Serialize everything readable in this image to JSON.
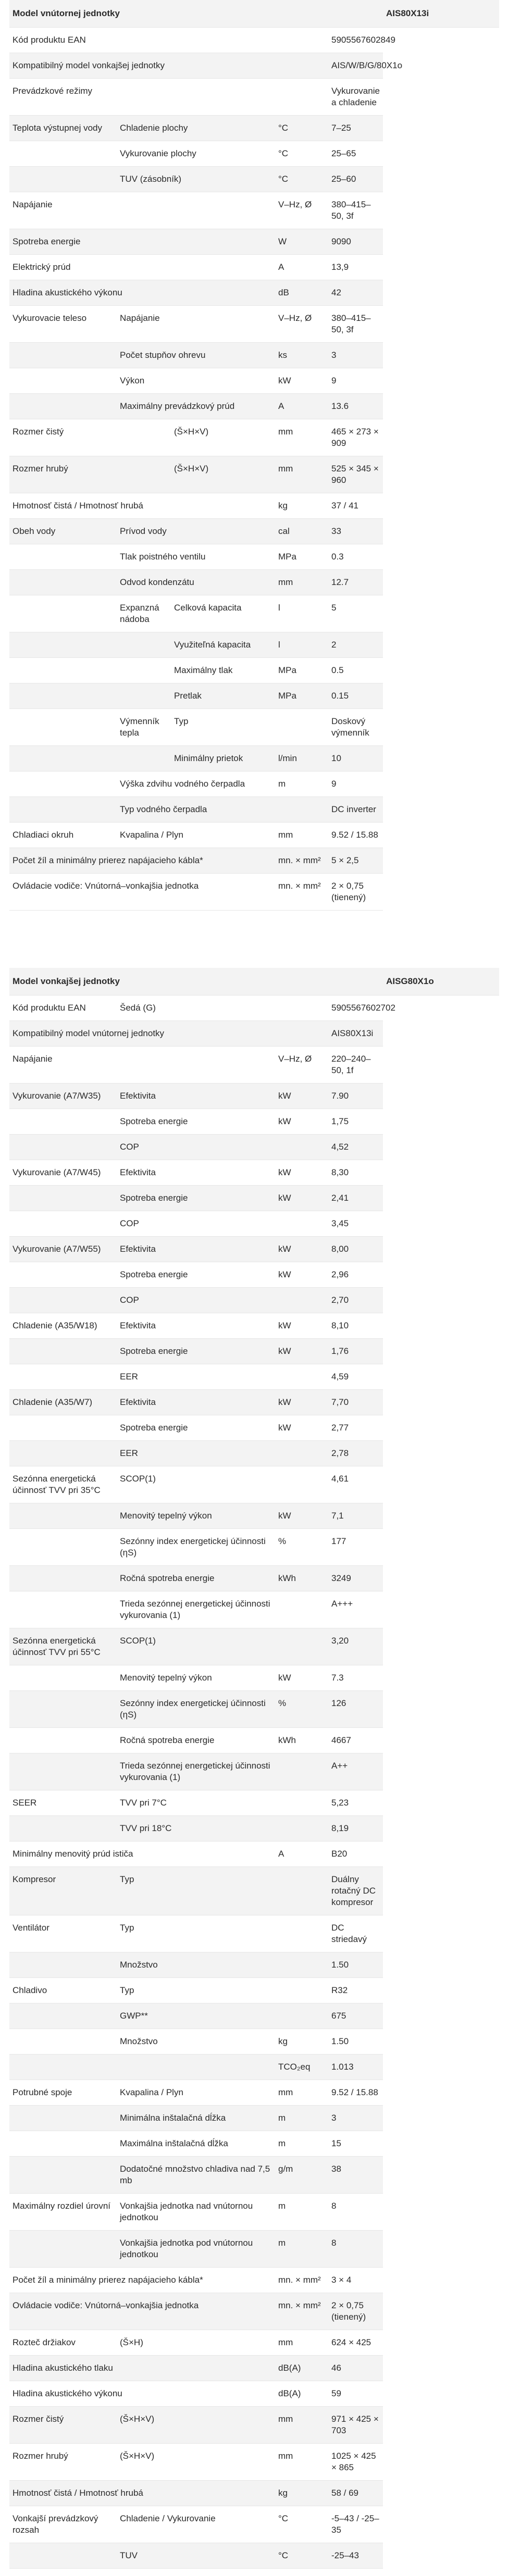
{
  "indoor": {
    "title": "Model vnútornej jednotky",
    "model": "AIS80X13i",
    "rows": [
      {
        "a": "Kód produktu EAN",
        "unit": "",
        "val": "5905567602849"
      },
      {
        "a": "Kompatibilný model vonkajšej jednotky",
        "unit": "",
        "val": "AIS/W/B/G/80X1o"
      },
      {
        "a": "Prevádzkové režimy",
        "unit": "",
        "val": "Vykurovanie a chladenie"
      },
      {
        "a": "Teplota výstupnej vody",
        "b": "Chladenie plochy",
        "unit": "°C",
        "val": "7–25"
      },
      {
        "a": "",
        "b": "Vykurovanie plochy",
        "unit": "°C",
        "val": "25–65"
      },
      {
        "a": "",
        "b": "TUV (zásobník)",
        "unit": "°C",
        "val": "25–60"
      },
      {
        "a": "Napájanie",
        "unit": "V–Hz, Ø",
        "val": "380–415–50, 3f"
      },
      {
        "a": "Spotreba energie",
        "unit": "W",
        "val": "9090"
      },
      {
        "a": "Elektrický prúd",
        "unit": "A",
        "val": "13,9"
      },
      {
        "a": "Hladina akustického výkonu",
        "unit": "dB",
        "val": "42"
      },
      {
        "a": "Vykurovacie teleso",
        "b": "Napájanie",
        "unit": "V–Hz, Ø",
        "val": "380–415–50, 3f"
      },
      {
        "a": "",
        "b": "Počet stupňov ohrevu",
        "unit": "ks",
        "val": "3"
      },
      {
        "a": "",
        "b": "Výkon",
        "unit": "kW",
        "val": "9"
      },
      {
        "a": "",
        "b": "Maximálny prevádzkový prúd",
        "unit": "A",
        "val": "13.6"
      },
      {
        "a": "Rozmer čistý",
        "c": "(Š×H×V)",
        "unit": "mm",
        "val": "465 × 273 × 909"
      },
      {
        "a": "Rozmer hrubý",
        "c": "(Š×H×V)",
        "unit": "mm",
        "val": "525 × 345 × 960"
      },
      {
        "a": "Hmotnosť čistá / Hmotnosť hrubá",
        "unit": "kg",
        "val": "37 / 41"
      },
      {
        "a": "Obeh vody",
        "b": "Prívod vody",
        "unit": "cal",
        "val": "33"
      },
      {
        "a": "",
        "b": "Tlak poistného ventilu",
        "unit": "MPa",
        "val": "0.3"
      },
      {
        "a": "",
        "b": "Odvod kondenzátu",
        "unit": "mm",
        "val": "12.7"
      },
      {
        "a": "",
        "b": "Expanzná nádoba",
        "c": "Celková kapacita",
        "unit": "l",
        "val": "5"
      },
      {
        "a": "",
        "b": "",
        "c": "Využiteľná kapacita",
        "unit": "l",
        "val": "2"
      },
      {
        "a": "",
        "b": "",
        "c": "Maximálny tlak",
        "unit": "MPa",
        "val": "0.5"
      },
      {
        "a": "",
        "b": "",
        "c": "Pretlak",
        "unit": "MPa",
        "val": "0.15"
      },
      {
        "a": "",
        "b": "Výmenník tepla",
        "c": "Typ",
        "unit": "",
        "val": "Doskový výmenník"
      },
      {
        "a": "",
        "b": "",
        "c": "Minimálny prietok",
        "unit": "l/min",
        "val": "10"
      },
      {
        "a": "",
        "b": "Výška zdvihu vodného čerpadla",
        "unit": "m",
        "val": "9"
      },
      {
        "a": "",
        "b": "Typ vodného čerpadla",
        "unit": "",
        "val": "DC inverter"
      },
      {
        "a": "Chladiaci okruh",
        "b": "Kvapalina / Plyn",
        "unit": "mm",
        "val": "9.52 / 15.88"
      },
      {
        "a": "Počet žíl a minimálny prierez napájacieho kábla*",
        "unit": "mn. × mm²",
        "val": "5 × 2,5"
      },
      {
        "a": "Ovládacie vodiče: Vnútorná–vonkajšia jednotka",
        "unit": "mn. × mm²",
        "val": "2 × 0,75 (tienený)"
      }
    ]
  },
  "outdoor": {
    "title": "Model vonkajšej jednotky",
    "model": "AISG80X1o",
    "rows": [
      {
        "a": "Kód produktu EAN",
        "b": "Šedá (G)",
        "unit": "",
        "val": "5905567602702"
      },
      {
        "a": "Kompatibilný model vnútornej jednotky",
        "unit": "",
        "val": "AIS80X13i"
      },
      {
        "a": "Napájanie",
        "unit": "V–Hz, Ø",
        "val": "220–240–50, 1f"
      },
      {
        "a": "Vykurovanie (A7/W35)",
        "b": "Efektivita",
        "unit": "kW",
        "val": "7.90"
      },
      {
        "a": "",
        "b": "Spotreba energie",
        "unit": "kW",
        "val": "1,75"
      },
      {
        "a": "",
        "b": "COP",
        "unit": "",
        "val": "4,52"
      },
      {
        "a": "Vykurovanie (A7/W45)",
        "b": "Efektivita",
        "unit": "kW",
        "val": "8,30"
      },
      {
        "a": "",
        "b": "Spotreba energie",
        "unit": "kW",
        "val": "2,41"
      },
      {
        "a": "",
        "b": "COP",
        "unit": "",
        "val": "3,45"
      },
      {
        "a": "Vykurovanie (A7/W55)",
        "b": "Efektivita",
        "unit": "kW",
        "val": "8,00"
      },
      {
        "a": "",
        "b": "Spotreba energie",
        "unit": "kW",
        "val": "2,96"
      },
      {
        "a": "",
        "b": "COP",
        "unit": "",
        "val": "2,70"
      },
      {
        "a": "Chladenie (A35/W18)",
        "b": "Efektivita",
        "unit": "kW",
        "val": "8,10"
      },
      {
        "a": "",
        "b": "Spotreba energie",
        "unit": "kW",
        "val": "1,76"
      },
      {
        "a": "",
        "b": "EER",
        "unit": "",
        "val": "4,59"
      },
      {
        "a": "Chladenie (A35/W7)",
        "b": "Efektivita",
        "unit": "kW",
        "val": "7,70"
      },
      {
        "a": "",
        "b": "Spotreba energie",
        "unit": "kW",
        "val": "2,77"
      },
      {
        "a": "",
        "b": "EER",
        "unit": "",
        "val": "2,78"
      },
      {
        "a": "Sezónna energetická účinnosť TVV pri 35°C",
        "b": "SCOP(1)",
        "unit": "",
        "val": "4,61"
      },
      {
        "a": "",
        "b": "Menovitý tepelný výkon",
        "unit": "kW",
        "val": "7,1"
      },
      {
        "a": "",
        "b": "Sezónny index energetickej účinnosti (ηS)",
        "unit": "%",
        "val": "177"
      },
      {
        "a": "",
        "b": "Ročná spotreba energie",
        "unit": "kWh",
        "val": "3249"
      },
      {
        "a": "",
        "b": "Trieda sezónnej energetickej účinnosti vykurovania (1)",
        "unit": "",
        "val": "A+++"
      },
      {
        "a": "Sezónna energetická účinnosť TVV pri 55°C",
        "b": "SCOP(1)",
        "unit": "",
        "val": "3,20"
      },
      {
        "a": "",
        "b": "Menovitý tepelný výkon",
        "unit": "kW",
        "val": "7.3"
      },
      {
        "a": "",
        "b": "Sezónny index energetickej účinnosti (ηS)",
        "unit": "%",
        "val": "126"
      },
      {
        "a": "",
        "b": "Ročná spotreba energie",
        "unit": "kWh",
        "val": "4667"
      },
      {
        "a": "",
        "b": "Trieda sezónnej energetickej účinnosti vykurovania (1)",
        "unit": "",
        "val": "A++"
      },
      {
        "a": "SEER",
        "b": "TVV pri 7°C",
        "unit": "",
        "val": "5,23"
      },
      {
        "a": "",
        "b": "TVV pri 18°C",
        "unit": "",
        "val": "8,19"
      },
      {
        "a": "Minimálny menovitý prúd ističa",
        "unit": "A",
        "val": "B20"
      },
      {
        "a": "Kompresor",
        "b": "Typ",
        "unit": "",
        "val": "Duálny rotačný DC kompresor"
      },
      {
        "a": "Ventilátor",
        "b": "Typ",
        "unit": "",
        "val": "DC striedavý"
      },
      {
        "a": "",
        "b": "Množstvo",
        "unit": "",
        "val": "1.50"
      },
      {
        "a": "Chladivo",
        "b": "Typ",
        "unit": "",
        "val": "R32"
      },
      {
        "a": "",
        "b": "GWP**",
        "unit": "",
        "val": "675"
      },
      {
        "a": "",
        "b": "Množstvo",
        "unit": "kg",
        "val": "1.50"
      },
      {
        "a": "",
        "b": "",
        "unit": "TCO₂eq",
        "val": "1.013"
      },
      {
        "a": "Potrubné spoje",
        "b": "Kvapalina / Plyn",
        "unit": "mm",
        "val": "9.52 / 15.88"
      },
      {
        "a": "",
        "b": "Minimálna inštalačná dĺžka",
        "unit": "m",
        "val": "3"
      },
      {
        "a": "",
        "b": "Maximálna inštalačná dĺžka",
        "unit": "m",
        "val": "15"
      },
      {
        "a": "",
        "b": "Dodatočné množstvo chladiva nad 7,5 mb",
        "unit": "g/m",
        "val": "38"
      },
      {
        "a": "Maximálny rozdiel úrovní",
        "b": "Vonkajšia jednotka nad vnútornou jednotkou",
        "unit": "m",
        "val": "8"
      },
      {
        "a": "",
        "b": "Vonkajšia jednotka pod vnútornou jednotkou",
        "unit": "m",
        "val": "8"
      },
      {
        "a": "Počet žíl a minimálny prierez napájacieho kábla*",
        "unit": "mn. × mm²",
        "val": "3 × 4"
      },
      {
        "a": "Ovládacie vodiče: Vnútorná–vonkajšia jednotka",
        "unit": "mn. × mm²",
        "val": "2 × 0,75 (tienený)"
      },
      {
        "a": "Rozteč držiakov",
        "b": "(Š×H)",
        "unit": "mm",
        "val": "624 × 425"
      },
      {
        "a": "Hladina akustického tlaku",
        "unit": "dB(A)",
        "val": "46"
      },
      {
        "a": "Hladina akustického výkonu",
        "unit": "dB(A)",
        "val": "59"
      },
      {
        "a": "Rozmer čistý",
        "b": "(Š×H×V)",
        "unit": "mm",
        "val": "971 × 425 × 703"
      },
      {
        "a": "Rozmer hrubý",
        "b": "(Š×H×V)",
        "unit": "mm",
        "val": "1025 × 425 × 865"
      },
      {
        "a": "Hmotnosť čistá / Hmotnosť hrubá",
        "unit": "kg",
        "val": "58 / 69"
      },
      {
        "a": "Vonkajší prevádzkový rozsah",
        "b": "Chladenie / Vykurovanie",
        "unit": "°C",
        "val": "-5–43 / -25–35"
      },
      {
        "a": "",
        "b": "TUV",
        "unit": "°C",
        "val": "-25–43"
      }
    ]
  }
}
